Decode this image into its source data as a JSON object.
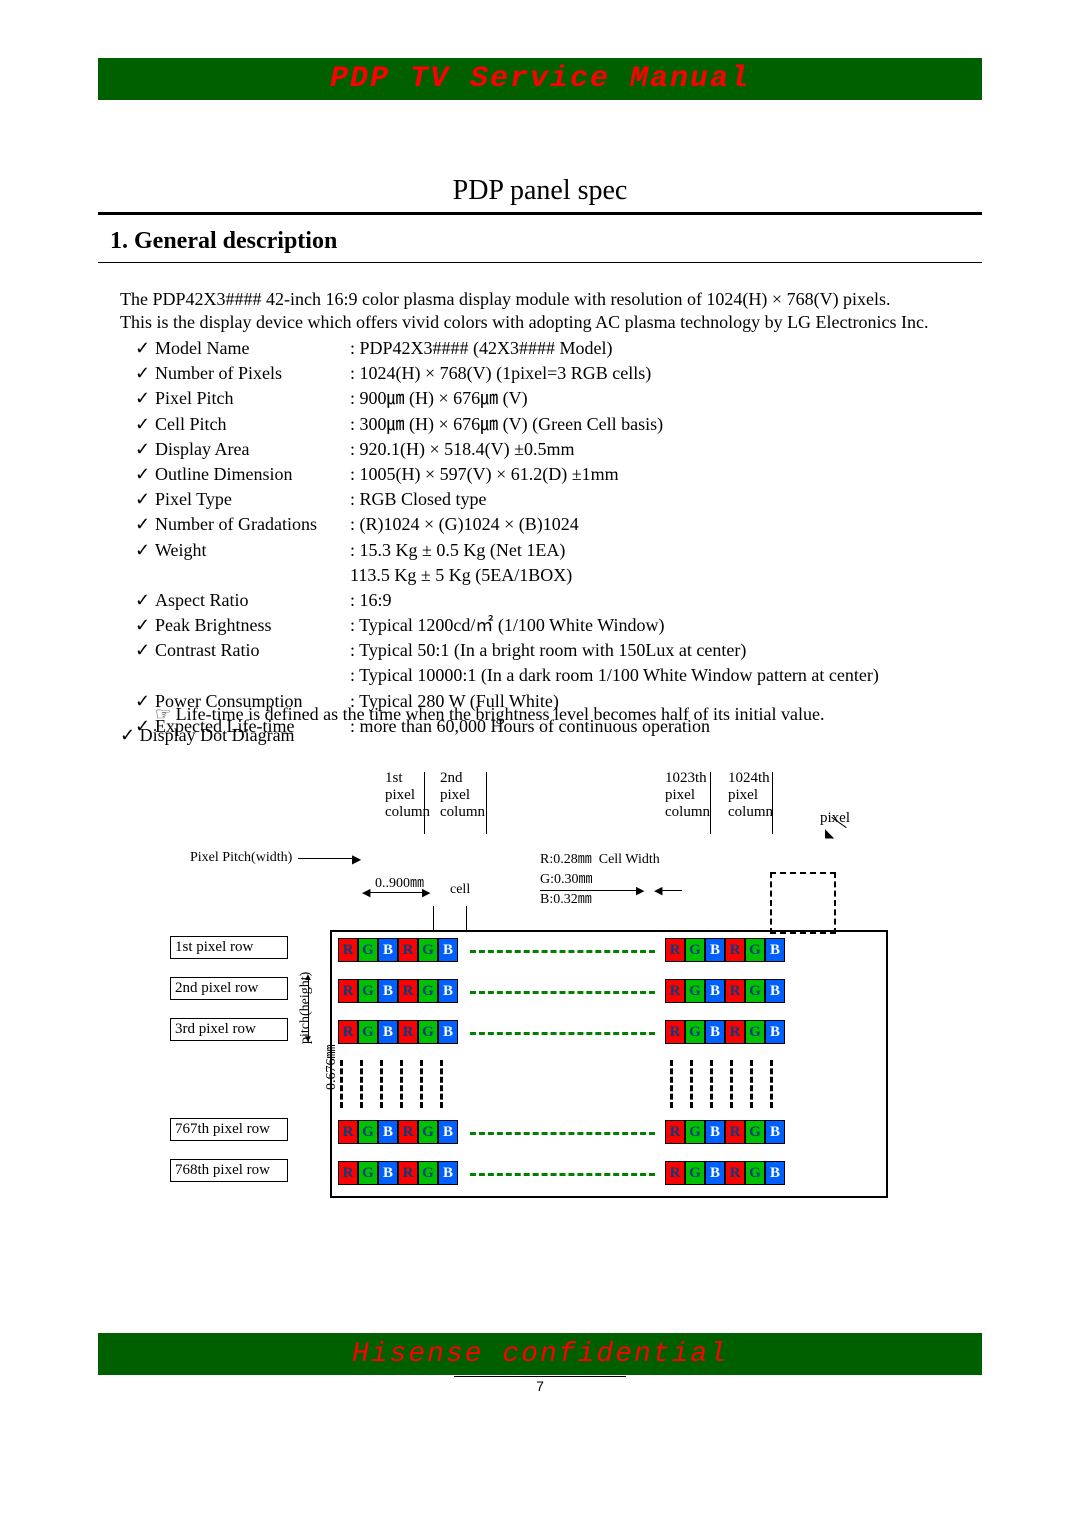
{
  "header": {
    "title": "PDP TV Service Manual"
  },
  "page_title": "PDP panel spec",
  "section_number": "1.",
  "section_title": "General description",
  "intro_line1": "The PDP42X3#### 42-inch 16:9 color plasma display module with resolution of 1024(H) × 768(V) pixels.",
  "intro_line2": "This is the display device which offers vivid colors with adopting AC plasma technology by LG Electronics Inc.",
  "specs": [
    {
      "label": "Model Name",
      "value": ": PDP42X3####  (42X3#### Model)"
    },
    {
      "label": "Number of Pixels",
      "value": ": 1024(H) × 768(V) (1pixel=3 RGB cells)"
    },
    {
      "label": "Pixel Pitch",
      "value": ": 900㎛ (H) × 676㎛ (V)"
    },
    {
      "label": "Cell Pitch",
      "value": ": 300㎛ (H) × 676㎛ (V) (Green Cell basis)"
    },
    {
      "label": "Display Area",
      "value": ": 920.1(H) × 518.4(V) ±0.5mm"
    },
    {
      "label": "Outline Dimension",
      "value": ": 1005(H) × 597(V) × 61.2(D) ±1mm"
    },
    {
      "label": "Pixel Type",
      "value": ": RGB Closed type"
    },
    {
      "label": "Number of Gradations",
      "value": ": (R)1024 × (G)1024 × (B)1024"
    },
    {
      "label": "Weight",
      "value": ": 15.3 Kg ± 0.5 Kg (Net 1EA)"
    },
    {
      "label": "",
      "value": "  113.5 Kg ± 5 Kg (5EA/1BOX)"
    },
    {
      "label": "Aspect Ratio",
      "value": ": 16:9"
    },
    {
      "label": "Peak  Brightness",
      "value": ": Typical 1200cd/㎡ (1/100 White Window)"
    },
    {
      "label": "Contrast Ratio",
      "value": ": Typical 50:1 (In a bright room with 150Lux at center)"
    },
    {
      "label": "",
      "value": ": Typical 10000:1 (In a dark room 1/100 White Window pattern at center)"
    },
    {
      "label": "Power Consumption",
      "value": ": Typical 280 W (Full White)"
    },
    {
      "label": "Expected Life-time",
      "value": ": more than 60,000 Hours of continuous operation"
    }
  ],
  "lifetime_note": "☞ Life-time is defined as the time when the brightness level becomes half of its initial value.",
  "diagram_label": "Display Dot Diagram",
  "diagram": {
    "col_labels": [
      "1st\npixel\ncolumn",
      "2nd\npixel\ncolumn",
      "1023th\npixel\ncolumn",
      "1024th\npixel\ncolumn"
    ],
    "pixel_label": "pixel",
    "pixel_pitch_w": "Pixel Pitch(width)",
    "pitch_value": "0..900㎜",
    "cell_label": "cell",
    "cell_widths": "R:0.28㎜  Cell Width\nG:0.30㎜\nB:0.32㎜",
    "row_labels": [
      "1st pixel row",
      "2nd pixel row",
      "3rd pixel row",
      "767th pixel row",
      "768th pixel row"
    ],
    "pitch_h_label": "pitch(height)",
    "pitch_h_value": "0.676㎜"
  },
  "footer": {
    "text": "Hisense confidential"
  },
  "page_number": "7",
  "colors": {
    "header_bg": "#006000",
    "header_fg": "#ff0000",
    "R": "#ff0000",
    "G": "#00c000",
    "B": "#0060ff",
    "dash": "#008000"
  }
}
